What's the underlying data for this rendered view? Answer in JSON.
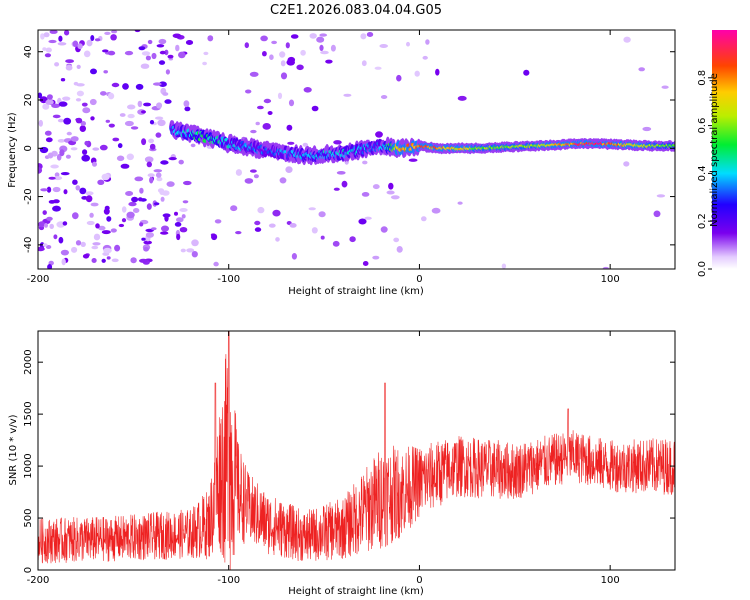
{
  "title": "C2E1.2026.083.04.04.G05",
  "colors": {
    "snr_line": "#ee2222",
    "axis": "#000000",
    "spec_low": "#e8d8ff",
    "spec_mid": "#7700ee"
  },
  "chart_data": [
    {
      "type": "heatmap",
      "xlabel": "Height of straight line (km)",
      "ylabel": "Frequency (Hz)",
      "xlim": [
        -200,
        134
      ],
      "ylim": [
        -50,
        49
      ],
      "xticks": [
        "-200",
        "-100",
        "0",
        "100"
      ],
      "xtick_values": [
        -200,
        -100,
        0,
        100
      ],
      "yticks": [
        "-40",
        "-20",
        "0",
        "20",
        "40"
      ],
      "ytick_values": [
        -40,
        -20,
        0,
        20,
        40
      ],
      "colorbar": {
        "label": "Normalized spectral amplitude",
        "range": [
          0,
          1
        ],
        "ticks": [
          "0.0",
          "0.2",
          "0.4",
          "0.6",
          "0.8"
        ],
        "tick_values": [
          0.0,
          0.2,
          0.4,
          0.6,
          0.8
        ],
        "colormap": "rainbow (white, violet, blue, cyan, green, yellow, orange, red, magenta)"
      },
      "ridge": [
        {
          "x": -130,
          "f": 8,
          "amp": 0.35
        },
        {
          "x": -120,
          "f": 6,
          "amp": 0.45
        },
        {
          "x": -110,
          "f": 4,
          "amp": 0.5
        },
        {
          "x": -100,
          "f": 2,
          "amp": 0.4
        },
        {
          "x": -80,
          "f": -1,
          "amp": 0.3
        },
        {
          "x": -60,
          "f": -3,
          "amp": 0.4
        },
        {
          "x": -40,
          "f": -2,
          "amp": 0.4
        },
        {
          "x": -20,
          "f": 1,
          "amp": 0.35
        },
        {
          "x": -10,
          "f": 0,
          "amp": 0.75
        },
        {
          "x": 0,
          "f": 1,
          "amp": 0.8
        },
        {
          "x": 10,
          "f": 0,
          "amp": 0.8
        },
        {
          "x": 30,
          "f": 0,
          "amp": 0.6
        },
        {
          "x": 60,
          "f": 1,
          "amp": 0.6
        },
        {
          "x": 90,
          "f": 2,
          "amp": 0.95
        },
        {
          "x": 120,
          "f": 1,
          "amp": 0.6
        },
        {
          "x": 134,
          "f": 1,
          "amp": 0.55
        }
      ]
    },
    {
      "type": "line",
      "xlabel": "Height of straight line (km)",
      "ylabel": "SNR (10 * v/v)",
      "xlim": [
        -200,
        134
      ],
      "ylim": [
        0,
        2300
      ],
      "xticks": [
        "-200",
        "-100",
        "0",
        "100"
      ],
      "xtick_values": [
        -200,
        -100,
        0,
        100
      ],
      "yticks": [
        "0",
        "500",
        "1000",
        "1500",
        "2000"
      ],
      "ytick_values": [
        0,
        500,
        1000,
        1500,
        2000
      ],
      "envelope": [
        {
          "x": -200,
          "mean": 280,
          "spread": 220
        },
        {
          "x": -160,
          "mean": 300,
          "spread": 220
        },
        {
          "x": -120,
          "mean": 350,
          "spread": 240
        },
        {
          "x": -110,
          "mean": 450,
          "spread": 350
        },
        {
          "x": -105,
          "mean": 900,
          "spread": 700
        },
        {
          "x": -100,
          "mean": 1100,
          "spread": 1200
        },
        {
          "x": -95,
          "mean": 750,
          "spread": 500
        },
        {
          "x": -90,
          "mean": 600,
          "spread": 350
        },
        {
          "x": -80,
          "mean": 450,
          "spread": 300
        },
        {
          "x": -60,
          "mean": 320,
          "spread": 250
        },
        {
          "x": -40,
          "mean": 400,
          "spread": 300
        },
        {
          "x": -20,
          "mean": 700,
          "spread": 500
        },
        {
          "x": -10,
          "mean": 750,
          "spread": 450
        },
        {
          "x": 0,
          "mean": 850,
          "spread": 350
        },
        {
          "x": 20,
          "mean": 1000,
          "spread": 300
        },
        {
          "x": 50,
          "mean": 950,
          "spread": 280
        },
        {
          "x": 80,
          "mean": 1100,
          "spread": 250
        },
        {
          "x": 100,
          "mean": 1000,
          "spread": 250
        },
        {
          "x": 134,
          "mean": 1000,
          "spread": 280
        }
      ],
      "peaks": [
        {
          "x": -100,
          "y": 2300
        },
        {
          "x": -107,
          "y": 1800
        },
        {
          "x": -18,
          "y": 1800
        },
        {
          "x": 78,
          "y": 1550
        }
      ]
    }
  ]
}
